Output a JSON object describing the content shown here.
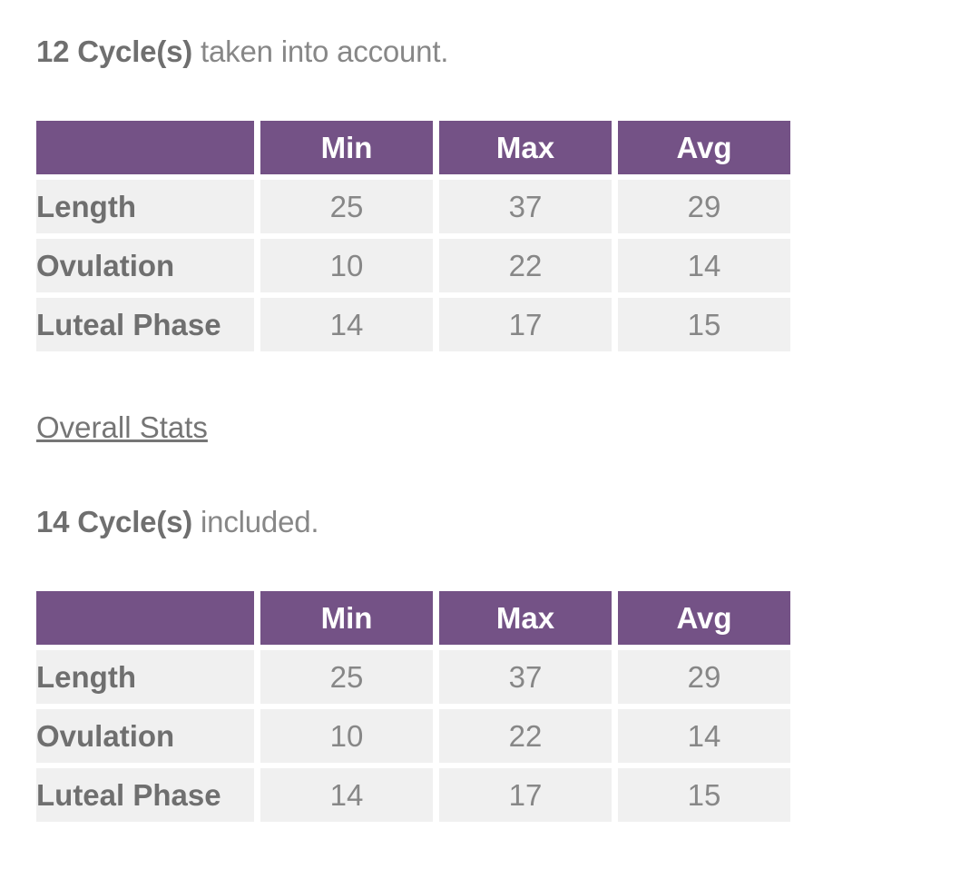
{
  "colors": {
    "header_bg": "#745286",
    "header_text": "#ffffff",
    "row_bg": "#f0f0f0",
    "text_strong": "#6f6f6f",
    "text_muted": "#878787",
    "link_text": "#757575"
  },
  "sections": [
    {
      "heading": {
        "bold": "12 Cycle(s)",
        "rest": " taken into account."
      },
      "table": {
        "columns": {
          "min": "Min",
          "max": "Max",
          "avg": "Avg"
        },
        "rows": [
          {
            "label": "Length",
            "min": "25",
            "max": "37",
            "avg": "29"
          },
          {
            "label": "Ovulation",
            "min": "10",
            "max": "22",
            "avg": "14"
          },
          {
            "label": "Luteal Phase",
            "min": "14",
            "max": "17",
            "avg": "15"
          }
        ]
      }
    },
    {
      "heading": {
        "bold": "14 Cycle(s)",
        "rest": " included."
      },
      "table": {
        "columns": {
          "min": "Min",
          "max": "Max",
          "avg": "Avg"
        },
        "rows": [
          {
            "label": "Length",
            "min": "25",
            "max": "37",
            "avg": "29"
          },
          {
            "label": "Ovulation",
            "min": "10",
            "max": "22",
            "avg": "14"
          },
          {
            "label": "Luteal Phase",
            "min": "14",
            "max": "17",
            "avg": "15"
          }
        ]
      }
    }
  ],
  "overall_stats_link": {
    "label": "Overall Stats"
  }
}
